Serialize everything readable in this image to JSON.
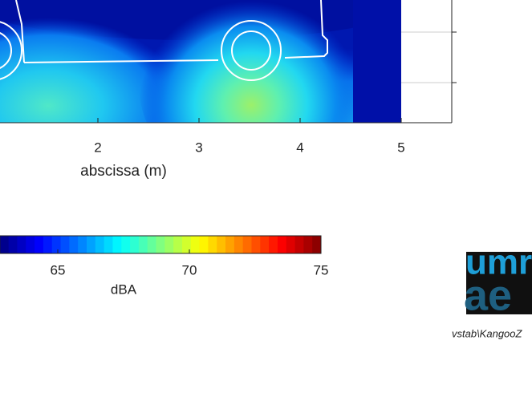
{
  "chart_data": {
    "type": "contour",
    "xlabel": "abscissa (m)",
    "xlim": [
      1.03,
      5.5
    ],
    "xticks": [
      2,
      3,
      4,
      5
    ],
    "colorbar": {
      "label": "dBA",
      "clim": [
        62.8,
        75
      ],
      "ticks": [
        65,
        70,
        75
      ]
    }
  },
  "logo": {
    "line1": "umr",
    "line2": "ae"
  },
  "footer": "vstab\\KangooZ"
}
